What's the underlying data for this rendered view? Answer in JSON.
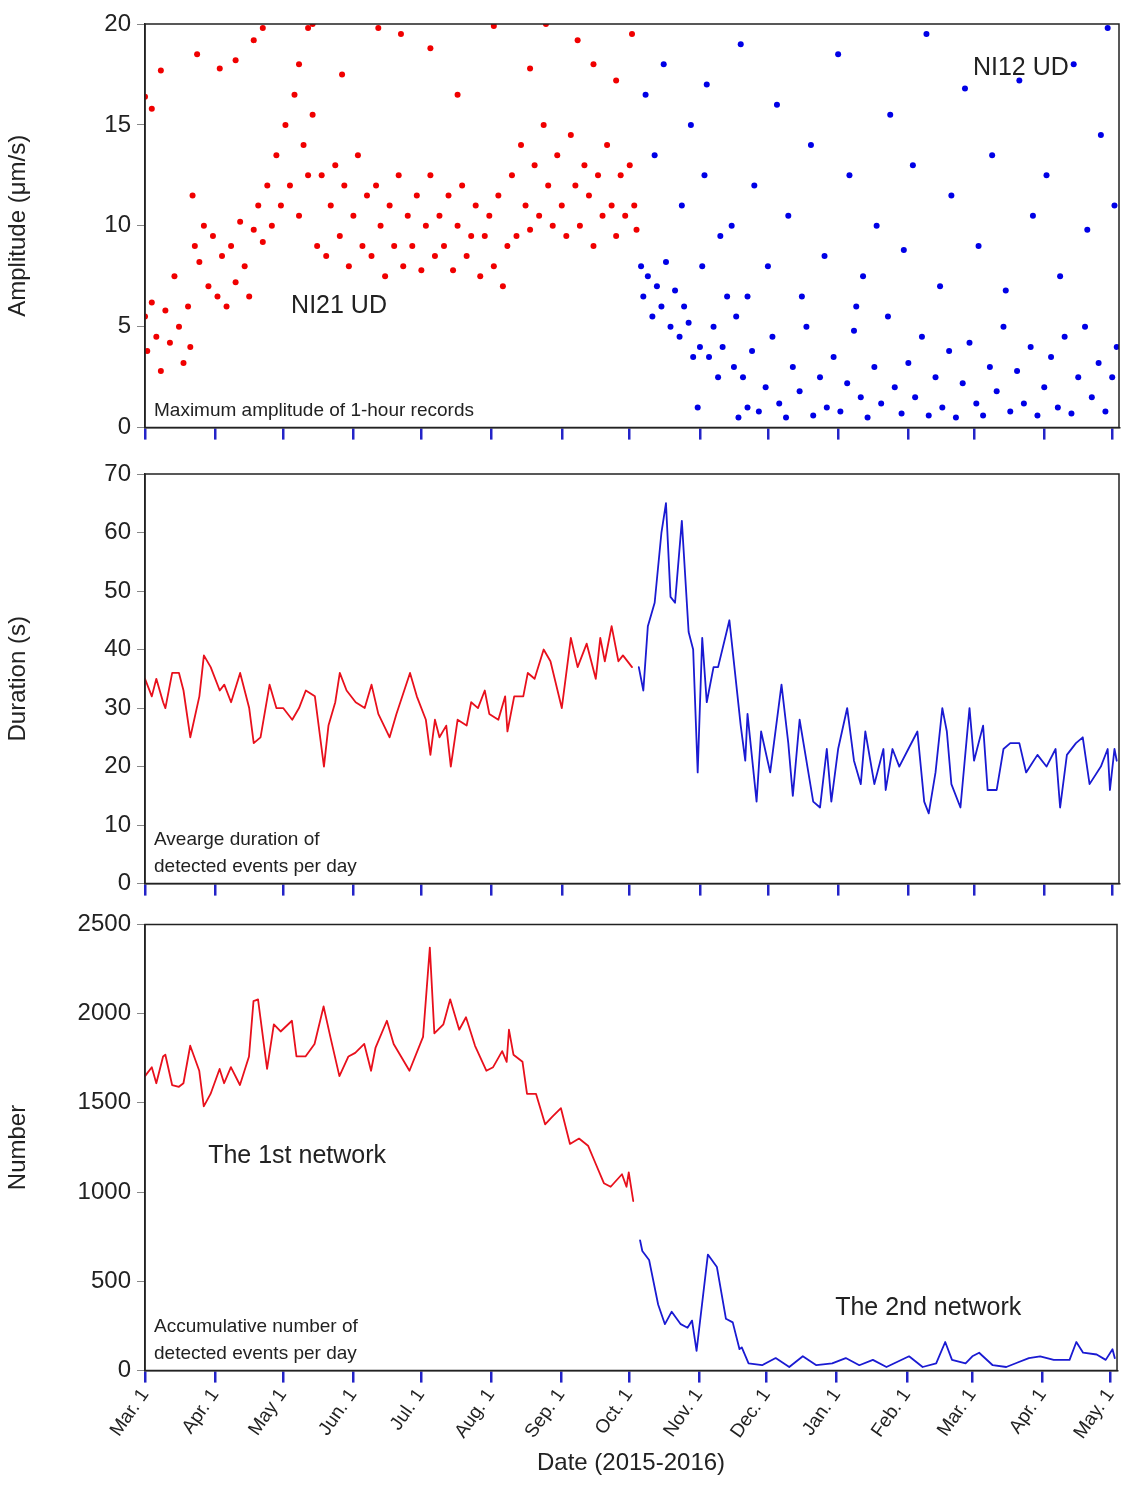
{
  "chart_data": [
    {
      "type": "scatter",
      "ylabel": "Amplitude (μm/s)",
      "xlim": [
        "2015-03-01",
        "2016-05-04"
      ],
      "ylim": [
        0,
        20
      ],
      "yticks": [
        0,
        5,
        10,
        15,
        20
      ],
      "tick_labels": "y",
      "marker": "circle",
      "xticks": [
        {
          "value": "2015-03-01",
          "label": null
        },
        {
          "value": "2015-04-01",
          "label": null
        },
        {
          "value": "2015-05-01",
          "label": null
        },
        {
          "value": "2015-06-01",
          "label": null
        },
        {
          "value": "2015-07-01",
          "label": null
        },
        {
          "value": "2015-08-01",
          "label": null
        },
        {
          "value": "2015-09-01",
          "label": null
        },
        {
          "value": "2015-10-01",
          "label": null
        },
        {
          "value": "2015-11-01",
          "label": null
        },
        {
          "value": "2015-12-01",
          "label": null
        },
        {
          "value": "2016-01-01",
          "label": null
        },
        {
          "value": "2016-02-01",
          "label": null
        },
        {
          "value": "2016-03-01",
          "label": null
        },
        {
          "value": "2016-04-01",
          "label": null
        },
        {
          "value": "2016-05-01",
          "label": null
        }
      ],
      "annotations": [
        "Maximum amplitude of 1-hour records"
      ],
      "series": [
        {
          "name": "NI21 UD",
          "color": "#f00000",
          "x": [
            "2015-03-01",
            "2015-03-02",
            "2015-03-04",
            "2015-03-06",
            "2015-03-08",
            "2015-03-10",
            "2015-03-12",
            "2015-03-14",
            "2015-03-16",
            "2015-03-18",
            "2015-03-20",
            "2015-03-21",
            "2015-03-22",
            "2015-03-23",
            "2015-03-25",
            "2015-03-27",
            "2015-03-29",
            "2015-03-31",
            "2015-04-02",
            "2015-04-04",
            "2015-04-06",
            "2015-04-08",
            "2015-04-10",
            "2015-04-12",
            "2015-04-14",
            "2015-04-16",
            "2015-04-18",
            "2015-04-20",
            "2015-04-22",
            "2015-04-24",
            "2015-04-26",
            "2015-04-28",
            "2015-04-30",
            "2015-05-02",
            "2015-05-04",
            "2015-05-06",
            "2015-05-08",
            "2015-05-10",
            "2015-05-12",
            "2015-05-14",
            "2015-05-16",
            "2015-05-18",
            "2015-05-20",
            "2015-05-22",
            "2015-05-24",
            "2015-05-26",
            "2015-05-28",
            "2015-05-30",
            "2015-06-01",
            "2015-06-03",
            "2015-06-05",
            "2015-06-07",
            "2015-06-09",
            "2015-06-11",
            "2015-06-13",
            "2015-06-15",
            "2015-06-17",
            "2015-06-19",
            "2015-06-21",
            "2015-06-23",
            "2015-06-25",
            "2015-06-27",
            "2015-06-29",
            "2015-07-01",
            "2015-07-03",
            "2015-07-05",
            "2015-07-07",
            "2015-07-09",
            "2015-07-11",
            "2015-07-13",
            "2015-07-15",
            "2015-07-17",
            "2015-07-19",
            "2015-07-21",
            "2015-07-23",
            "2015-07-25",
            "2015-07-27",
            "2015-07-29",
            "2015-07-31",
            "2015-08-02",
            "2015-08-04",
            "2015-08-06",
            "2015-08-08",
            "2015-08-10",
            "2015-08-12",
            "2015-08-14",
            "2015-08-16",
            "2015-08-18",
            "2015-08-20",
            "2015-08-22",
            "2015-08-24",
            "2015-08-26",
            "2015-08-28",
            "2015-08-30",
            "2015-09-01",
            "2015-09-03",
            "2015-09-05",
            "2015-09-07",
            "2015-09-09",
            "2015-09-11",
            "2015-09-13",
            "2015-09-15",
            "2015-09-17",
            "2015-09-19",
            "2015-09-21",
            "2015-09-23",
            "2015-09-25",
            "2015-09-27",
            "2015-09-29",
            "2015-10-01",
            "2015-10-03",
            "2015-10-04",
            "2015-03-01",
            "2015-03-04",
            "2015-03-08",
            "2015-03-24",
            "2015-04-03",
            "2015-04-10",
            "2015-04-18",
            "2015-04-22",
            "2015-05-08",
            "2015-05-12",
            "2015-05-14",
            "2015-05-27",
            "2015-06-12",
            "2015-06-22",
            "2015-07-05",
            "2015-07-17",
            "2015-08-02",
            "2015-08-18",
            "2015-08-25",
            "2015-09-08",
            "2015-09-15",
            "2015-09-25",
            "2015-10-02"
          ],
          "values": [
            5.5,
            3.8,
            6.2,
            4.5,
            2.8,
            5.8,
            4.2,
            7.5,
            5.0,
            3.2,
            6.0,
            4.0,
            11.5,
            9.0,
            8.2,
            10.0,
            7.0,
            9.5,
            6.5,
            8.5,
            6.0,
            9.0,
            7.2,
            10.2,
            8.0,
            6.5,
            9.8,
            11.0,
            9.2,
            12.0,
            10.0,
            13.5,
            11.0,
            15.0,
            12.0,
            16.5,
            10.5,
            14.0,
            12.5,
            15.5,
            9.0,
            12.5,
            8.5,
            11.0,
            13.0,
            9.5,
            12.0,
            8.0,
            10.5,
            13.5,
            9.0,
            11.5,
            8.5,
            12.0,
            10.0,
            7.5,
            11.0,
            9.0,
            12.5,
            8.0,
            10.5,
            9.0,
            11.5,
            7.8,
            10.0,
            12.5,
            8.5,
            10.5,
            9.0,
            11.5,
            7.8,
            10.0,
            12.0,
            8.5,
            9.5,
            11.0,
            7.5,
            9.5,
            10.5,
            8.0,
            11.5,
            7.0,
            9.0,
            12.5,
            9.5,
            14.0,
            11.0,
            9.8,
            13.0,
            10.5,
            15.0,
            12.0,
            10.0,
            13.5,
            11.0,
            9.5,
            14.5,
            12.0,
            10.0,
            13.0,
            11.5,
            9.0,
            12.5,
            10.5,
            14.0,
            11.0,
            9.5,
            12.5,
            10.5,
            13.0,
            11.0,
            9.8,
            16.4,
            15.8,
            17.7,
            18.5,
            17.8,
            18.2,
            19.2,
            19.8,
            18.0,
            19.8,
            20.0,
            17.5,
            19.8,
            19.5,
            18.8,
            16.5,
            19.9,
            17.8,
            20.0,
            19.2,
            18.0,
            17.2,
            19.5
          ]
        },
        {
          "name": "NI12 UD",
          "color": "#0000e6",
          "x": [
            "2015-10-06",
            "2015-10-07",
            "2015-10-09",
            "2015-10-11",
            "2015-10-13",
            "2015-10-15",
            "2015-10-17",
            "2015-10-19",
            "2015-10-21",
            "2015-10-23",
            "2015-10-25",
            "2015-10-27",
            "2015-10-29",
            "2015-10-31",
            "2015-11-01",
            "2015-11-02",
            "2015-11-03",
            "2015-11-05",
            "2015-11-07",
            "2015-11-09",
            "2015-11-11",
            "2015-11-13",
            "2015-11-15",
            "2015-11-16",
            "2015-11-17",
            "2015-11-18",
            "2015-11-20",
            "2015-11-22",
            "2015-11-24",
            "2015-11-27",
            "2015-11-30",
            "2015-12-03",
            "2015-12-06",
            "2015-12-09",
            "2015-12-12",
            "2015-12-15",
            "2015-12-18",
            "2015-12-21",
            "2015-12-24",
            "2015-12-27",
            "2015-12-30",
            "2016-01-02",
            "2016-01-05",
            "2016-01-08",
            "2016-01-11",
            "2016-01-14",
            "2016-01-17",
            "2016-01-20",
            "2016-01-23",
            "2016-01-26",
            "2016-01-29",
            "2016-02-01",
            "2016-02-04",
            "2016-02-07",
            "2016-02-10",
            "2016-02-13",
            "2016-02-16",
            "2016-02-19",
            "2016-02-22",
            "2016-02-25",
            "2016-02-28",
            "2016-03-02",
            "2016-03-05",
            "2016-03-08",
            "2016-03-11",
            "2016-03-14",
            "2016-03-17",
            "2016-03-20",
            "2016-03-23",
            "2016-03-26",
            "2016-03-29",
            "2016-04-01",
            "2016-04-04",
            "2016-04-07",
            "2016-04-10",
            "2016-04-13",
            "2016-04-16",
            "2016-04-19",
            "2016-04-22",
            "2016-04-25",
            "2016-04-28",
            "2016-05-01",
            "2016-05-03",
            "2015-10-08",
            "2015-10-12",
            "2015-10-16",
            "2015-10-24",
            "2015-10-28",
            "2015-11-04",
            "2015-11-10",
            "2015-11-19",
            "2015-11-25",
            "2015-12-01",
            "2015-12-05",
            "2015-12-10",
            "2015-12-16",
            "2015-12-20",
            "2015-12-26",
            "2016-01-01",
            "2016-01-06",
            "2016-01-12",
            "2016-01-18",
            "2016-01-24",
            "2016-01-30",
            "2016-02-03",
            "2016-02-09",
            "2016-02-15",
            "2016-02-20",
            "2016-02-26",
            "2016-03-03",
            "2016-03-09",
            "2016-03-15",
            "2016-03-21",
            "2016-03-27",
            "2016-04-02",
            "2016-04-08",
            "2016-04-14",
            "2016-04-20",
            "2016-04-26",
            "2016-05-02",
            "2016-04-29",
            "2015-11-22",
            "2016-01-09"
          ],
          "values": [
            8.0,
            6.5,
            7.5,
            5.5,
            7.0,
            6.0,
            8.2,
            5.0,
            6.8,
            4.5,
            6.0,
            5.2,
            3.5,
            1.0,
            4.0,
            8.0,
            12.5,
            3.5,
            5.0,
            2.5,
            4.0,
            6.5,
            10.0,
            3.0,
            5.5,
            0.5,
            2.5,
            1.0,
            3.8,
            0.8,
            2.0,
            4.5,
            1.2,
            0.5,
            3.0,
            1.8,
            5.0,
            0.6,
            2.5,
            1.0,
            3.5,
            0.8,
            2.2,
            4.8,
            1.5,
            0.5,
            3.0,
            1.2,
            5.5,
            2.0,
            0.7,
            3.2,
            1.5,
            4.5,
            0.6,
            2.5,
            1.0,
            3.8,
            0.5,
            2.2,
            4.2,
            1.2,
            0.6,
            3.0,
            1.8,
            5.0,
            0.8,
            2.8,
            1.2,
            4.0,
            0.6,
            2.0,
            3.5,
            1.0,
            4.5,
            0.7,
            2.5,
            5.0,
            1.5,
            3.2,
            0.8,
            2.5,
            4.0,
            16.5,
            13.5,
            18.0,
            11.0,
            15.0,
            17.0,
            9.5,
            19.0,
            12.0,
            8.0,
            16.0,
            10.5,
            6.5,
            14.0,
            8.5,
            18.5,
            12.5,
            7.5,
            10.0,
            15.5,
            8.8,
            13.0,
            19.5,
            7.0,
            11.5,
            16.8,
            9.0,
            13.5,
            6.8,
            17.2,
            10.5,
            12.5,
            7.5,
            18.0,
            9.8,
            14.5,
            11.0,
            19.8,
            6.5,
            6.0
          ]
        }
      ]
    },
    {
      "type": "line",
      "ylabel": "Duration (s)",
      "xlim": [
        "2015-03-01",
        "2016-05-04"
      ],
      "ylim": [
        0,
        70
      ],
      "yticks": [
        0,
        10,
        20,
        30,
        40,
        50,
        60,
        70
      ],
      "tick_labels": "y",
      "xticks": [
        {
          "value": "2015-03-01",
          "label": null
        },
        {
          "value": "2015-04-01",
          "label": null
        },
        {
          "value": "2015-05-01",
          "label": null
        },
        {
          "value": "2015-06-01",
          "label": null
        },
        {
          "value": "2015-07-01",
          "label": null
        },
        {
          "value": "2015-08-01",
          "label": null
        },
        {
          "value": "2015-09-01",
          "label": null
        },
        {
          "value": "2015-10-01",
          "label": null
        },
        {
          "value": "2015-11-01",
          "label": null
        },
        {
          "value": "2015-12-01",
          "label": null
        },
        {
          "value": "2016-01-01",
          "label": null
        },
        {
          "value": "2016-02-01",
          "label": null
        },
        {
          "value": "2016-03-01",
          "label": null
        },
        {
          "value": "2016-04-01",
          "label": null
        },
        {
          "value": "2016-05-01",
          "label": null
        }
      ],
      "annotations": [
        "Avearge duration of\ndetected events per day"
      ],
      "series": [
        {
          "color": "#e8101c",
          "x": [
            "2015-03-01",
            "2015-03-04",
            "2015-03-06",
            "2015-03-09",
            "2015-03-10",
            "2015-03-13",
            "2015-03-16",
            "2015-03-18",
            "2015-03-21",
            "2015-03-25",
            "2015-03-27",
            "2015-03-30",
            "2015-04-03",
            "2015-04-05",
            "2015-04-08",
            "2015-04-12",
            "2015-04-16",
            "2015-04-18",
            "2015-04-21",
            "2015-04-25",
            "2015-04-28",
            "2015-05-01",
            "2015-05-05",
            "2015-05-08",
            "2015-05-11",
            "2015-05-15",
            "2015-05-19",
            "2015-05-21",
            "2015-05-24",
            "2015-05-26",
            "2015-05-29",
            "2015-06-02",
            "2015-06-06",
            "2015-06-09",
            "2015-06-12",
            "2015-06-17",
            "2015-06-20",
            "2015-06-26",
            "2015-06-29",
            "2015-07-03",
            "2015-07-05",
            "2015-07-07",
            "2015-07-09",
            "2015-07-12",
            "2015-07-14",
            "2015-07-17",
            "2015-07-21",
            "2015-07-23",
            "2015-07-26",
            "2015-07-29",
            "2015-07-31",
            "2015-08-04",
            "2015-08-07",
            "2015-08-08",
            "2015-08-11",
            "2015-08-15",
            "2015-08-17",
            "2015-08-20",
            "2015-08-24",
            "2015-08-27",
            "2015-09-01",
            "2015-09-05",
            "2015-09-08",
            "2015-09-12",
            "2015-09-16",
            "2015-09-18",
            "2015-09-20",
            "2015-09-23",
            "2015-09-26",
            "2015-09-28",
            "2015-10-02"
          ],
          "values": [
            35,
            32,
            35,
            31,
            30,
            36,
            36,
            33,
            25,
            32,
            39,
            37,
            33,
            34,
            31,
            36,
            30,
            24,
            25,
            34,
            30,
            30,
            28,
            30,
            33,
            32,
            20,
            27,
            31,
            36,
            33,
            31,
            30,
            34,
            29,
            25,
            29,
            36,
            32,
            28,
            22,
            28,
            25,
            27,
            20,
            28,
            27,
            31,
            30,
            33,
            29,
            28,
            32,
            26,
            32,
            32,
            36,
            35,
            40,
            38,
            30,
            42,
            37,
            41,
            35,
            42,
            38,
            44,
            38,
            39,
            37
          ]
        },
        {
          "color": "#1a1ad2",
          "x": [
            "2015-10-05",
            "2015-10-07",
            "2015-10-09",
            "2015-10-12",
            "2015-10-15",
            "2015-10-17",
            "2015-10-19",
            "2015-10-21",
            "2015-10-24",
            "2015-10-27",
            "2015-10-29",
            "2015-10-31",
            "2015-11-02",
            "2015-11-04",
            "2015-11-07",
            "2015-11-09",
            "2015-11-14",
            "2015-11-19",
            "2015-11-21",
            "2015-11-22",
            "2015-11-26",
            "2015-11-28",
            "2015-12-02",
            "2015-12-07",
            "2015-12-10",
            "2015-12-12",
            "2015-12-15",
            "2015-12-18",
            "2015-12-21",
            "2015-12-24",
            "2015-12-27",
            "2015-12-29",
            "2016-01-01",
            "2016-01-05",
            "2016-01-08",
            "2016-01-11",
            "2016-01-13",
            "2016-01-17",
            "2016-01-21",
            "2016-01-22",
            "2016-01-25",
            "2016-01-28",
            "2016-02-01",
            "2016-02-05",
            "2016-02-08",
            "2016-02-10",
            "2016-02-13",
            "2016-02-16",
            "2016-02-18",
            "2016-02-20",
            "2016-02-24",
            "2016-02-28",
            "2016-03-01",
            "2016-03-05",
            "2016-03-07",
            "2016-03-11",
            "2016-03-14",
            "2016-03-17",
            "2016-03-21",
            "2016-03-24",
            "2016-03-29",
            "2016-04-02",
            "2016-04-06",
            "2016-04-08",
            "2016-04-11",
            "2016-04-15",
            "2016-04-18",
            "2016-04-21",
            "2016-04-26",
            "2016-04-29",
            "2016-04-30",
            "2016-05-02",
            "2016-05-03"
          ],
          "values": [
            37,
            33,
            44,
            48,
            60,
            65,
            49,
            48,
            62,
            43,
            40,
            19,
            42,
            31,
            37,
            37,
            45,
            27,
            21,
            29,
            14,
            26,
            19,
            34,
            24,
            15,
            28,
            21,
            14,
            13,
            23,
            14,
            23,
            30,
            21,
            17,
            26,
            17,
            23,
            16,
            23,
            20,
            23,
            26,
            14,
            12,
            19,
            30,
            26,
            17,
            13,
            30,
            21,
            27,
            16,
            16,
            23,
            24,
            24,
            19,
            22,
            20,
            23,
            13,
            22,
            24,
            25,
            17,
            20,
            23,
            16,
            23,
            21
          ]
        }
      ]
    },
    {
      "type": "line",
      "ylabel": "Number",
      "xlabel": "Date (2015-2016)",
      "xlim": [
        "2015-03-01",
        "2016-05-04"
      ],
      "ylim": [
        0,
        2500
      ],
      "yticks": [
        0,
        500,
        1000,
        1500,
        2000,
        2500
      ],
      "xticks": [
        {
          "value": "2015-03-01",
          "label": "Mar. 1"
        },
        {
          "value": "2015-04-01",
          "label": "Apr. 1"
        },
        {
          "value": "2015-05-01",
          "label": "May 1"
        },
        {
          "value": "2015-06-01",
          "label": "Jun. 1"
        },
        {
          "value": "2015-07-01",
          "label": "Jul. 1"
        },
        {
          "value": "2015-08-01",
          "label": "Aug. 1"
        },
        {
          "value": "2015-09-01",
          "label": "Sep. 1"
        },
        {
          "value": "2015-10-01",
          "label": "Oct. 1"
        },
        {
          "value": "2015-11-01",
          "label": "Nov. 1"
        },
        {
          "value": "2015-12-01",
          "label": "Dec. 1"
        },
        {
          "value": "2016-01-01",
          "label": "Jan. 1"
        },
        {
          "value": "2016-02-01",
          "label": "Feb. 1"
        },
        {
          "value": "2016-03-01",
          "label": "Mar. 1"
        },
        {
          "value": "2016-04-01",
          "label": "Apr. 1"
        },
        {
          "value": "2016-05-01",
          "label": "May. 1"
        }
      ],
      "annotations": [
        "Accumulative number of\ndetected events per day"
      ],
      "series": [
        {
          "name": "The 1st network",
          "color": "#e8101c",
          "x": [
            "2015-03-01",
            "2015-03-04",
            "2015-03-06",
            "2015-03-09",
            "2015-03-10",
            "2015-03-13",
            "2015-03-16",
            "2015-03-18",
            "2015-03-21",
            "2015-03-25",
            "2015-03-27",
            "2015-03-30",
            "2015-04-03",
            "2015-04-05",
            "2015-04-08",
            "2015-04-12",
            "2015-04-16",
            "2015-04-18",
            "2015-04-20",
            "2015-04-24",
            "2015-04-27",
            "2015-04-30",
            "2015-05-05",
            "2015-05-07",
            "2015-05-11",
            "2015-05-15",
            "2015-05-19",
            "2015-05-22",
            "2015-05-26",
            "2015-05-30",
            "2015-06-02",
            "2015-06-06",
            "2015-06-09",
            "2015-06-11",
            "2015-06-16",
            "2015-06-19",
            "2015-06-26",
            "2015-07-02",
            "2015-07-05",
            "2015-07-07",
            "2015-07-11",
            "2015-07-14",
            "2015-07-18",
            "2015-07-21",
            "2015-07-25",
            "2015-07-30",
            "2015-08-02",
            "2015-08-06",
            "2015-08-08",
            "2015-08-09",
            "2015-08-11",
            "2015-08-15",
            "2015-08-17",
            "2015-08-21",
            "2015-08-25",
            "2015-08-28",
            "2015-09-01",
            "2015-09-05",
            "2015-09-09",
            "2015-09-13",
            "2015-09-16",
            "2015-09-20",
            "2015-09-23",
            "2015-09-28",
            "2015-09-30",
            "2015-10-01",
            "2015-10-03"
          ],
          "values": [
            1650,
            1700,
            1610,
            1760,
            1770,
            1600,
            1590,
            1610,
            1820,
            1680,
            1480,
            1550,
            1690,
            1610,
            1700,
            1600,
            1760,
            2070,
            2080,
            1690,
            1940,
            1900,
            1960,
            1760,
            1760,
            1830,
            2040,
            1870,
            1650,
            1760,
            1780,
            1830,
            1680,
            1810,
            1960,
            1830,
            1680,
            1870,
            2370,
            1890,
            1940,
            2080,
            1910,
            1980,
            1820,
            1680,
            1700,
            1790,
            1730,
            1910,
            1770,
            1730,
            1550,
            1550,
            1380,
            1420,
            1470,
            1270,
            1300,
            1260,
            1170,
            1050,
            1030,
            1100,
            1030,
            1110,
            950
          ]
        },
        {
          "name": "The 2nd network",
          "color": "#1a1ad2",
          "x": [
            "2015-10-06",
            "2015-10-07",
            "2015-10-10",
            "2015-10-14",
            "2015-10-17",
            "2015-10-20",
            "2015-10-24",
            "2015-10-27",
            "2015-10-29",
            "2015-10-31",
            "2015-11-05",
            "2015-11-09",
            "2015-11-13",
            "2015-11-16",
            "2015-11-19",
            "2015-11-20",
            "2015-11-23",
            "2015-11-29",
            "2015-12-05",
            "2015-12-11",
            "2015-12-17",
            "2015-12-23",
            "2015-12-30",
            "2016-01-05",
            "2016-01-11",
            "2016-01-17",
            "2016-01-23",
            "2016-02-02",
            "2016-02-08",
            "2016-02-14",
            "2016-02-18",
            "2016-02-21",
            "2016-02-27",
            "2016-03-01",
            "2016-03-04",
            "2016-03-10",
            "2016-03-16",
            "2016-03-26",
            "2016-03-31",
            "2016-04-06",
            "2016-04-13",
            "2016-04-16",
            "2016-04-19",
            "2016-04-25",
            "2016-04-29",
            "2016-05-02",
            "2016-05-03"
          ],
          "values": [
            730,
            670,
            620,
            370,
            260,
            330,
            260,
            240,
            280,
            110,
            650,
            580,
            290,
            270,
            120,
            130,
            40,
            30,
            70,
            20,
            80,
            30,
            40,
            70,
            30,
            60,
            20,
            80,
            20,
            40,
            160,
            60,
            40,
            80,
            100,
            30,
            20,
            70,
            80,
            60,
            60,
            160,
            100,
            90,
            60,
            120,
            70
          ]
        }
      ]
    }
  ]
}
